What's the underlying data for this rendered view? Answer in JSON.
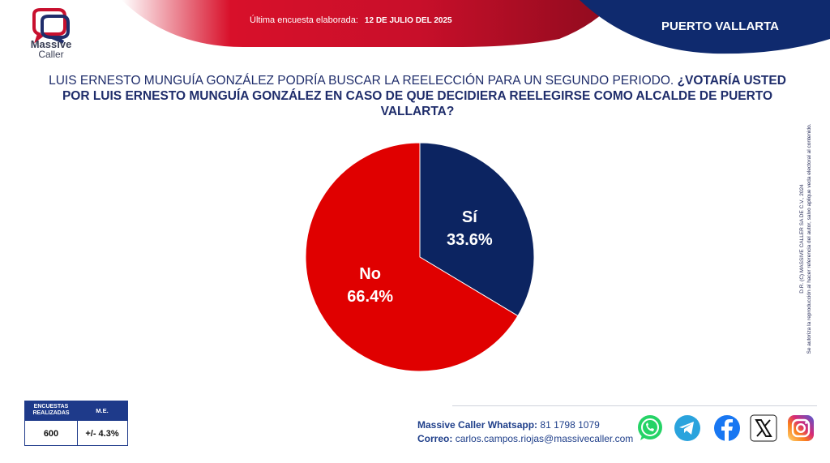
{
  "header": {
    "last_survey_label": "Última encuesta elaborada:",
    "last_survey_date": "12 DE JULIO DEL 2025",
    "city": "PUERTO VALLARTA",
    "accent_red": "#c8102e",
    "accent_navy": "#0f2a6e"
  },
  "logo": {
    "line1": "Massive",
    "line2": "Caller"
  },
  "question": {
    "intro": "LUIS ERNESTO MUNGUÍA GONZÁLEZ PODRÍA BUSCAR LA REELECCIÓN PARA UN SEGUNDO PERIODO.",
    "bold": "¿VOTARÍA USTED POR LUIS ERNESTO MUNGUÍA GONZÁLEZ EN CASO DE QUE DECIDIERA REELEGIRSE COMO ALCALDE DE PUERTO VALLARTA?"
  },
  "chart_data": {
    "type": "pie",
    "slices": [
      {
        "label": "Sí",
        "value": 33.6,
        "display": "33.6%",
        "color": "#0c2461"
      },
      {
        "label": "No",
        "value": 66.4,
        "display": "66.4%",
        "color": "#e00000"
      }
    ]
  },
  "side_note": {
    "line1": "D.R. (C) MASSIVE CALLER SA DE C.V., 2024",
    "line2": "Se autoriza la reproducción al hacer referencia del autor, salvo aplique veda electoral al contenido."
  },
  "stats": {
    "col1_header": "ENCUESTAS REALIZADAS",
    "col2_header": "M.E.",
    "col1_value": "600",
    "col2_value": "+/- 4.3%"
  },
  "contact": {
    "whatsapp_label": "Massive Caller Whatsapp:",
    "whatsapp_value": "81 1798 1079",
    "email_label": "Correo:",
    "email_value": "carlos.campos.riojas@massivecaller.com"
  },
  "social": {
    "icons": [
      "whatsapp-icon",
      "telegram-icon",
      "facebook-icon",
      "x-icon",
      "instagram-icon"
    ]
  }
}
